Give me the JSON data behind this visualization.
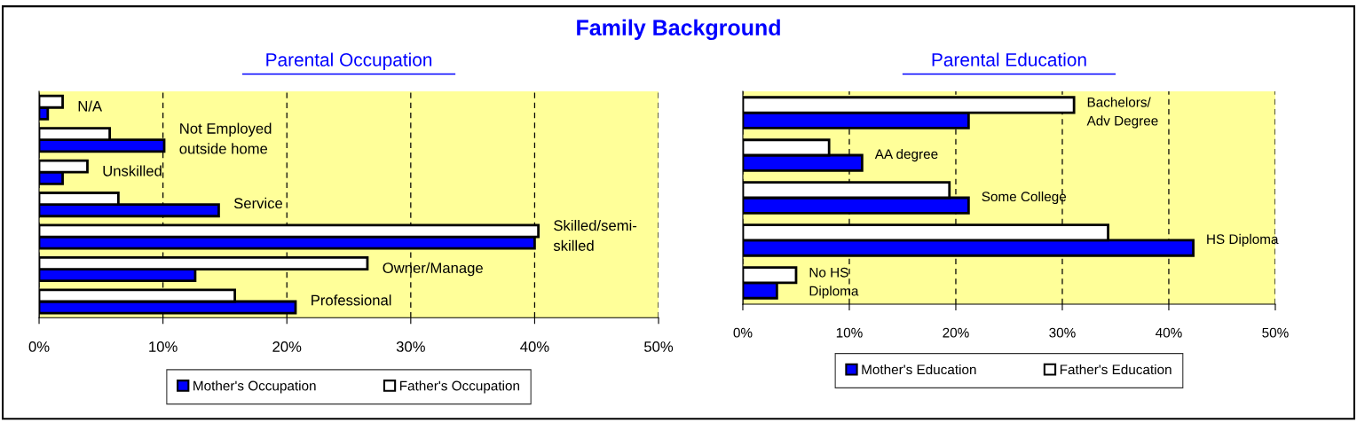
{
  "chart_data": [
    {
      "type": "bar",
      "orientation": "horizontal",
      "title": "Family Background",
      "subtitle": "Parental Occupation",
      "categories": [
        "N/A",
        "Not Employed\noutside home",
        "Unskilled",
        "Service",
        "Skilled/semi-\nskilled",
        "Owner/Manage",
        "Professional"
      ],
      "series": [
        {
          "name": "Mother's Occupation",
          "color": "#0000ff",
          "values": [
            0.7,
            10.1,
            1.9,
            14.5,
            40.0,
            12.6,
            20.7
          ]
        },
        {
          "name": "Father's Occupation",
          "color": "#ffffff",
          "values": [
            1.9,
            5.7,
            3.9,
            6.4,
            40.3,
            26.5,
            15.8
          ]
        }
      ],
      "xlim": [
        0,
        50
      ],
      "xticks": [
        {
          "value": 0,
          "label": "0%"
        },
        {
          "value": 10,
          "label": "10%"
        },
        {
          "value": 20,
          "label": "20%"
        },
        {
          "value": 30,
          "label": "30%"
        },
        {
          "value": 40,
          "label": "40%"
        },
        {
          "value": 50,
          "label": "50%"
        }
      ],
      "grid": "x",
      "legend": "bottom"
    },
    {
      "type": "bar",
      "orientation": "horizontal",
      "subtitle": "Parental Education",
      "categories": [
        "Bachelors/\nAdv Degree",
        "AA degree",
        "Some College",
        "HS Diploma",
        "No HS\nDiploma"
      ],
      "series": [
        {
          "name": "Mother's Education",
          "color": "#0000ff",
          "values": [
            21.2,
            11.2,
            21.2,
            42.3,
            3.2
          ]
        },
        {
          "name": "Father's Education",
          "color": "#ffffff",
          "values": [
            31.1,
            8.1,
            19.4,
            34.3,
            5.0
          ]
        }
      ],
      "xlim": [
        0,
        50
      ],
      "xticks": [
        {
          "value": 0,
          "label": "0%"
        },
        {
          "value": 10,
          "label": "10%"
        },
        {
          "value": 20,
          "label": "20%"
        },
        {
          "value": 30,
          "label": "30%"
        },
        {
          "value": 40,
          "label": "40%"
        },
        {
          "value": 50,
          "label": "50%"
        }
      ],
      "grid": "x",
      "legend": "bottom"
    }
  ]
}
